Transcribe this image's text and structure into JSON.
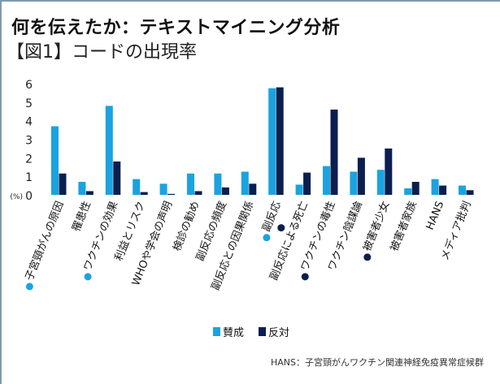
{
  "title": "何を伝えたか：テキストマイニング分析",
  "subtitle": "【図1】コードの出現率",
  "footnote": "HANS：子宮頸がんワクチン関連神経免疫異常症候群",
  "chart_data": {
    "type": "bar",
    "yunit_label": "(%)",
    "ylim": [
      0,
      6
    ],
    "yticks": [
      0,
      1,
      2,
      3,
      4,
      5,
      6
    ],
    "grid": false,
    "legend_position": "bottom",
    "categories": [
      "子宮頸がんの原因",
      "罹患性",
      "ワクチンの効果",
      "利益とリスク",
      "WHOや学会の声明",
      "検診の勧め",
      "副反応の頻度",
      "副反応との因果関係",
      "副反応",
      "副反応による死亡",
      "ワクチンの毒性",
      "ワクチン陰謀論",
      "被害者少女",
      "被害者家族",
      "HANS",
      "メディア批判"
    ],
    "category_markers": [
      [
        "賛成"
      ],
      [],
      [
        "賛成"
      ],
      [],
      [],
      [],
      [],
      [],
      [
        "賛成",
        "反対"
      ],
      [],
      [
        "反対"
      ],
      [],
      [
        "反対"
      ],
      [],
      [],
      []
    ],
    "series": [
      {
        "name": "賛成",
        "color": "#1aa3e0",
        "values": [
          3.7,
          0.7,
          4.8,
          0.85,
          0.6,
          1.15,
          1.15,
          1.25,
          5.75,
          0.55,
          1.55,
          1.25,
          1.35,
          0.35,
          0.85,
          0.5
        ]
      },
      {
        "name": "反対",
        "color": "#0b1f4e",
        "values": [
          1.15,
          0.2,
          1.8,
          0.15,
          0.05,
          0.2,
          0.4,
          0.6,
          5.8,
          1.2,
          4.6,
          2.0,
          2.5,
          0.7,
          0.5,
          0.25
        ]
      }
    ]
  }
}
